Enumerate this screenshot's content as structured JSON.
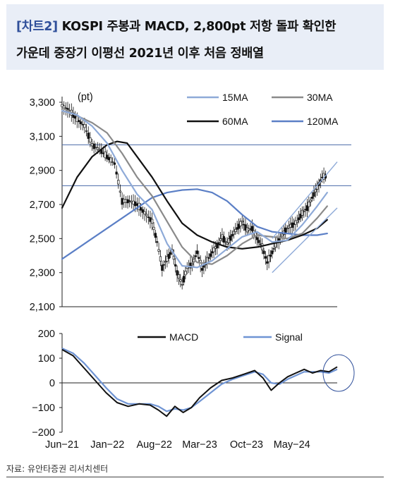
{
  "header": {
    "tag": "[차트2]",
    "line1": "KOSPI 주봉과 MACD, 2,800pt 저항 돌파 확인한",
    "line2": "가운데 중장기 이평선 2021년 이후 처음 정배열"
  },
  "source": "자료: 유안타증권 리서치센터",
  "colors": {
    "ma15": "#8eaad8",
    "ma30": "#8a8a8a",
    "ma60": "#111111",
    "ma120": "#5b7fc6",
    "macd": "#111111",
    "signal": "#6f94d4",
    "candle": "#111111",
    "guide": "#4a6aa8",
    "highlight_circle": "#2f4f9a"
  },
  "chart_data": [
    {
      "type": "line",
      "subtype": "candlestick-with-moving-averages",
      "unit_label": "(pt)",
      "ylim": [
        2100,
        3300
      ],
      "yticks": [
        "3,300",
        "3,100",
        "2,900",
        "2,700",
        "2,500",
        "2,300",
        "2,100"
      ],
      "ytick_values": [
        3300,
        3100,
        2900,
        2700,
        2500,
        2300,
        2100
      ],
      "x_range": [
        "2021-06",
        "2024-07"
      ],
      "horizontal_lines": [
        3050,
        2810
      ],
      "legend": [
        {
          "key": "ma15",
          "label": "15MA"
        },
        {
          "key": "ma30",
          "label": "30MA"
        },
        {
          "key": "ma60",
          "label": "60MA"
        },
        {
          "key": "ma120",
          "label": "120MA"
        }
      ],
      "close": [
        [
          0,
          3280
        ],
        [
          3,
          3250
        ],
        [
          6,
          3200
        ],
        [
          9,
          3160
        ],
        [
          12,
          3050
        ],
        [
          15,
          3020
        ],
        [
          18,
          2980
        ],
        [
          21,
          2940
        ],
        [
          24,
          2720
        ],
        [
          27,
          2720
        ],
        [
          30,
          2700
        ],
        [
          33,
          2650
        ],
        [
          36,
          2600
        ],
        [
          38,
          2480
        ],
        [
          40,
          2330
        ],
        [
          42,
          2380
        ],
        [
          44,
          2430
        ],
        [
          46,
          2300
        ],
        [
          48,
          2230
        ],
        [
          50,
          2330
        ],
        [
          52,
          2350
        ],
        [
          54,
          2420
        ],
        [
          56,
          2320
        ],
        [
          58,
          2370
        ],
        [
          60,
          2420
        ],
        [
          62,
          2460
        ],
        [
          64,
          2510
        ],
        [
          66,
          2470
        ],
        [
          68,
          2520
        ],
        [
          70,
          2560
        ],
        [
          72,
          2600
        ],
        [
          74,
          2550
        ],
        [
          76,
          2560
        ],
        [
          78,
          2500
        ],
        [
          80,
          2450
        ],
        [
          82,
          2360
        ],
        [
          84,
          2420
        ],
        [
          86,
          2480
        ],
        [
          88,
          2520
        ],
        [
          90,
          2560
        ],
        [
          92,
          2580
        ],
        [
          94,
          2600
        ],
        [
          96,
          2650
        ],
        [
          98,
          2680
        ],
        [
          100,
          2740
        ],
        [
          102,
          2800
        ],
        [
          104,
          2860
        ],
        [
          106,
          2870
        ]
      ],
      "ma15": [
        [
          0,
          3250
        ],
        [
          6,
          3225
        ],
        [
          12,
          3160
        ],
        [
          18,
          3060
        ],
        [
          24,
          2900
        ],
        [
          30,
          2760
        ],
        [
          36,
          2670
        ],
        [
          42,
          2470
        ],
        [
          48,
          2340
        ],
        [
          54,
          2330
        ],
        [
          60,
          2370
        ],
        [
          66,
          2440
        ],
        [
          72,
          2510
        ],
        [
          78,
          2540
        ],
        [
          84,
          2480
        ],
        [
          90,
          2490
        ],
        [
          96,
          2580
        ],
        [
          102,
          2690
        ],
        [
          106,
          2770
        ]
      ],
      "ma30": [
        [
          0,
          3270
        ],
        [
          6,
          3220
        ],
        [
          12,
          3180
        ],
        [
          18,
          3120
        ],
        [
          24,
          3000
        ],
        [
          30,
          2860
        ],
        [
          36,
          2750
        ],
        [
          42,
          2600
        ],
        [
          48,
          2450
        ],
        [
          54,
          2360
        ],
        [
          60,
          2350
        ],
        [
          66,
          2400
        ],
        [
          72,
          2470
        ],
        [
          78,
          2520
        ],
        [
          84,
          2510
        ],
        [
          90,
          2500
        ],
        [
          96,
          2530
        ],
        [
          102,
          2620
        ],
        [
          106,
          2690
        ]
      ],
      "ma60": [
        [
          0,
          2680
        ],
        [
          6,
          2860
        ],
        [
          12,
          2980
        ],
        [
          18,
          3050
        ],
        [
          22,
          3070
        ],
        [
          26,
          3060
        ],
        [
          30,
          2980
        ],
        [
          36,
          2860
        ],
        [
          42,
          2720
        ],
        [
          48,
          2590
        ],
        [
          54,
          2520
        ],
        [
          60,
          2480
        ],
        [
          66,
          2450
        ],
        [
          72,
          2440
        ],
        [
          78,
          2450
        ],
        [
          84,
          2470
        ],
        [
          90,
          2490
        ],
        [
          96,
          2520
        ],
        [
          102,
          2560
        ],
        [
          106,
          2610
        ]
      ],
      "ma120": [
        [
          0,
          2380
        ],
        [
          6,
          2440
        ],
        [
          12,
          2500
        ],
        [
          18,
          2560
        ],
        [
          24,
          2620
        ],
        [
          30,
          2680
        ],
        [
          36,
          2740
        ],
        [
          42,
          2770
        ],
        [
          48,
          2785
        ],
        [
          54,
          2790
        ],
        [
          60,
          2770
        ],
        [
          66,
          2720
        ],
        [
          72,
          2640
        ],
        [
          78,
          2570
        ],
        [
          84,
          2540
        ],
        [
          90,
          2530
        ],
        [
          96,
          2520
        ],
        [
          102,
          2520
        ],
        [
          106,
          2530
        ]
      ],
      "trend_channel": [
        {
          "from": [
            84,
            2500
          ],
          "to": [
            110,
            2950
          ]
        },
        {
          "from": [
            84,
            2300
          ],
          "to": [
            110,
            2680
          ]
        }
      ]
    },
    {
      "type": "line",
      "ylim": [
        -200,
        200
      ],
      "yticks": [
        "200",
        "100",
        "0",
        "−100",
        "−200"
      ],
      "ytick_values": [
        200,
        100,
        0,
        -100,
        -200
      ],
      "categories": [
        "Jun−21",
        "Jan−22",
        "Aug−22",
        "Mar−23",
        "Oct−23",
        "May−24"
      ],
      "category_index": [
        0,
        30,
        61,
        91,
        122,
        152
      ],
      "legend": [
        {
          "key": "macd",
          "label": "MACD"
        },
        {
          "key": "signal",
          "label": "Signal"
        }
      ],
      "macd": [
        [
          0,
          135
        ],
        [
          8,
          110
        ],
        [
          16,
          60
        ],
        [
          24,
          10
        ],
        [
          32,
          -40
        ],
        [
          40,
          -80
        ],
        [
          48,
          -95
        ],
        [
          56,
          -85
        ],
        [
          64,
          -90
        ],
        [
          70,
          -110
        ],
        [
          76,
          -135
        ],
        [
          82,
          -95
        ],
        [
          88,
          -120
        ],
        [
          94,
          -100
        ],
        [
          100,
          -60
        ],
        [
          108,
          -20
        ],
        [
          116,
          10
        ],
        [
          124,
          20
        ],
        [
          132,
          35
        ],
        [
          140,
          50
        ],
        [
          146,
          20
        ],
        [
          152,
          -30
        ],
        [
          158,
          0
        ],
        [
          164,
          25
        ],
        [
          170,
          40
        ],
        [
          176,
          55
        ],
        [
          182,
          40
        ],
        [
          188,
          50
        ],
        [
          194,
          45
        ],
        [
          200,
          65
        ]
      ],
      "signal": [
        [
          0,
          140
        ],
        [
          8,
          120
        ],
        [
          16,
          80
        ],
        [
          24,
          30
        ],
        [
          32,
          -20
        ],
        [
          40,
          -65
        ],
        [
          48,
          -85
        ],
        [
          56,
          -85
        ],
        [
          64,
          -85
        ],
        [
          70,
          -95
        ],
        [
          76,
          -115
        ],
        [
          82,
          -105
        ],
        [
          88,
          -110
        ],
        [
          94,
          -100
        ],
        [
          100,
          -75
        ],
        [
          108,
          -40
        ],
        [
          116,
          -5
        ],
        [
          124,
          15
        ],
        [
          132,
          30
        ],
        [
          140,
          45
        ],
        [
          146,
          35
        ],
        [
          152,
          0
        ],
        [
          158,
          -5
        ],
        [
          164,
          15
        ],
        [
          170,
          30
        ],
        [
          176,
          45
        ],
        [
          182,
          45
        ],
        [
          188,
          45
        ],
        [
          194,
          40
        ],
        [
          200,
          55
        ]
      ]
    }
  ]
}
